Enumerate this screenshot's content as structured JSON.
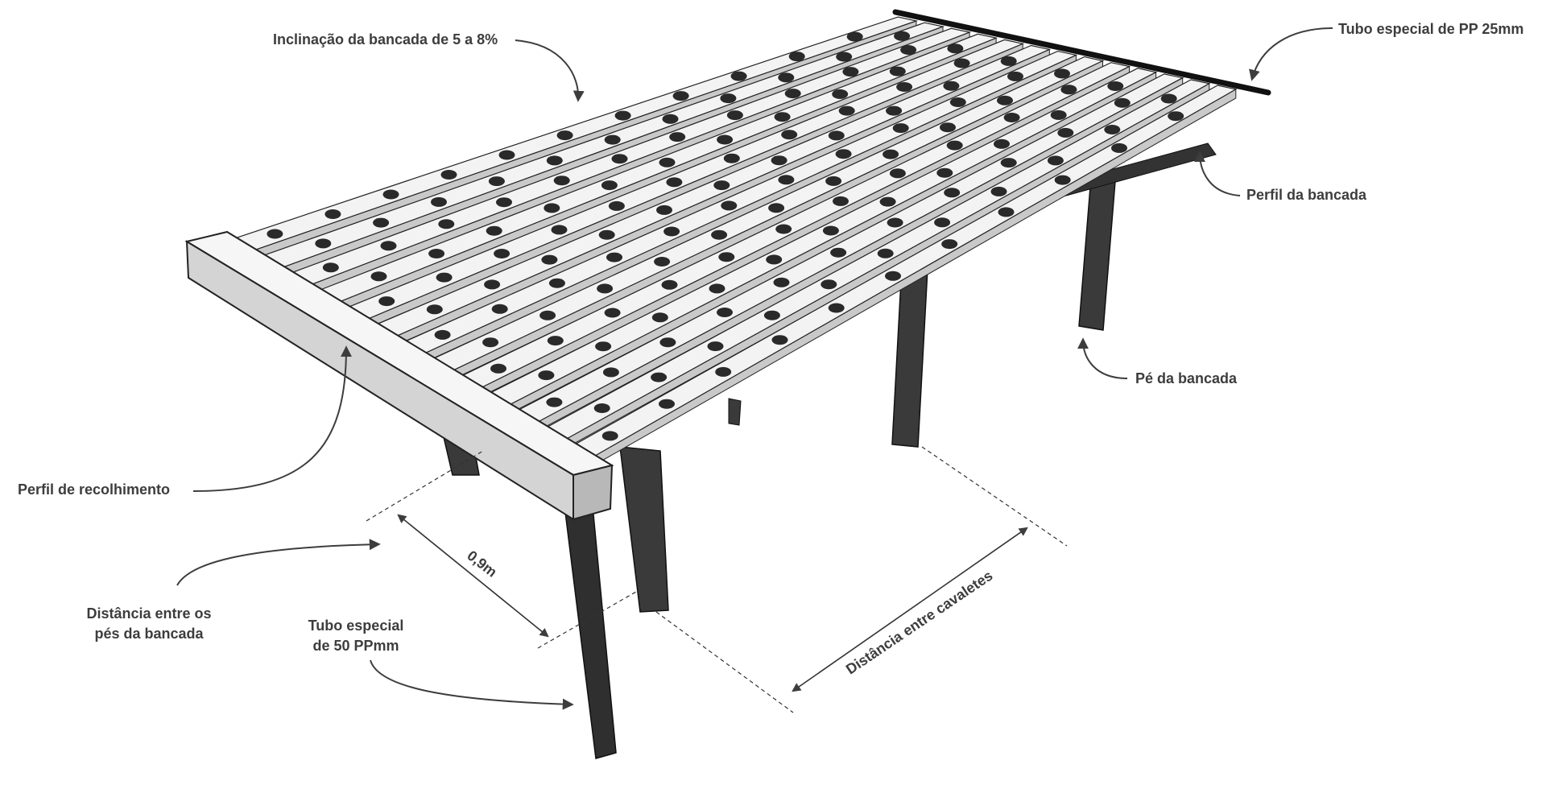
{
  "labels": {
    "inclination": "Inclinação da bancada de 5 a 8%",
    "pp_tube_25": "Tubo especial de PP 25mm",
    "profile": "Perfil da bancada",
    "foot": "Pé da bancada",
    "collection_profile": "Perfil de recolhimento",
    "feet_distance_line1": "Distância entre os",
    "feet_distance_line2": "pés da bancada",
    "pp_tube_50_line1": "Tubo especial",
    "pp_tube_50_line2": "de 50 PPmm",
    "width_dimension": "0,9m",
    "trestle_distance": "Distância entre cavaletes"
  },
  "colors": {
    "background": "#ffffff",
    "channel_top": "#f3f3f3",
    "channel_side": "#c9c9c9",
    "leg": "#3a3a3a",
    "text": "#3d3d3d"
  }
}
